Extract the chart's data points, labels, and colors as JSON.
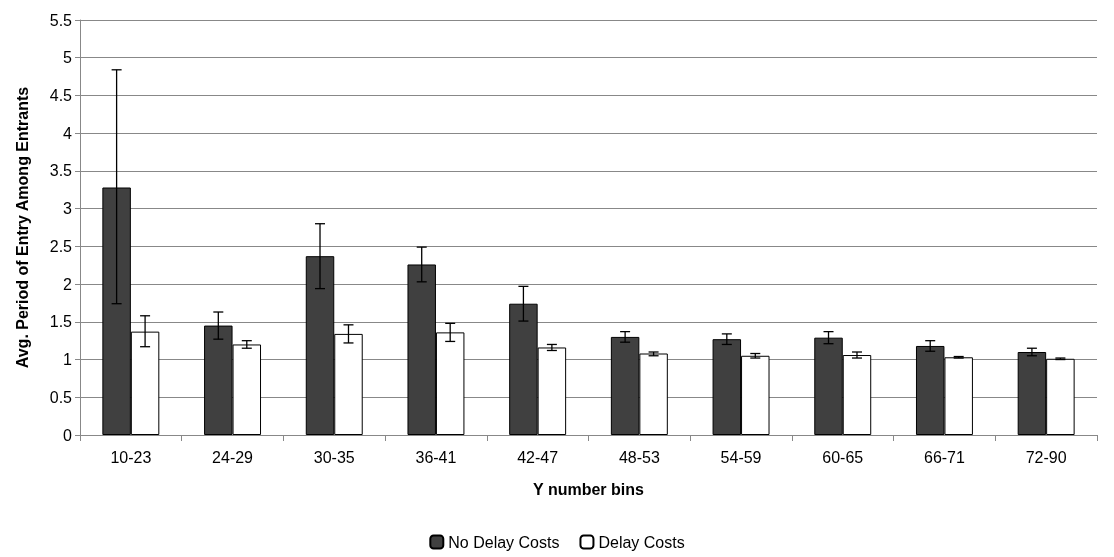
{
  "chart_data": {
    "type": "bar",
    "xlabel": "Y number bins",
    "ylabel": "Avg. Period of Entry Among Entrants",
    "categories": [
      "10-23",
      "24-29",
      "30-35",
      "36-41",
      "42-47",
      "48-53",
      "54-59",
      "60-65",
      "66-71",
      "72-90"
    ],
    "series": [
      {
        "name": "No Delay Costs",
        "color": "#404040",
        "values": [
          3.28,
          1.45,
          2.37,
          2.26,
          1.74,
          1.3,
          1.27,
          1.29,
          1.18,
          1.1
        ],
        "errors": [
          [
            1.74,
            4.84
          ],
          [
            1.27,
            1.63
          ],
          [
            1.94,
            2.8
          ],
          [
            2.03,
            2.49
          ],
          [
            1.51,
            1.97
          ],
          [
            1.23,
            1.37
          ],
          [
            1.2,
            1.34
          ],
          [
            1.21,
            1.37
          ],
          [
            1.11,
            1.25
          ],
          [
            1.05,
            1.15
          ]
        ]
      },
      {
        "name": "Delay Costs",
        "color": "#ffffff",
        "values": [
          1.37,
          1.2,
          1.34,
          1.36,
          1.16,
          1.08,
          1.05,
          1.06,
          1.03,
          1.01
        ],
        "errors": [
          [
            1.17,
            1.58
          ],
          [
            1.15,
            1.25
          ],
          [
            1.22,
            1.46
          ],
          [
            1.24,
            1.48
          ],
          [
            1.12,
            1.2
          ],
          [
            1.05,
            1.1
          ],
          [
            1.02,
            1.08
          ],
          [
            1.02,
            1.1
          ],
          [
            1.02,
            1.04
          ],
          [
            1.0,
            1.02
          ]
        ]
      }
    ],
    "ylim": [
      0,
      5.5
    ],
    "yticks": [
      0,
      0.5,
      1,
      1.5,
      2,
      2.5,
      3,
      3.5,
      4,
      4.5,
      5,
      5.5
    ],
    "grid": "y",
    "legend": "bottom"
  }
}
